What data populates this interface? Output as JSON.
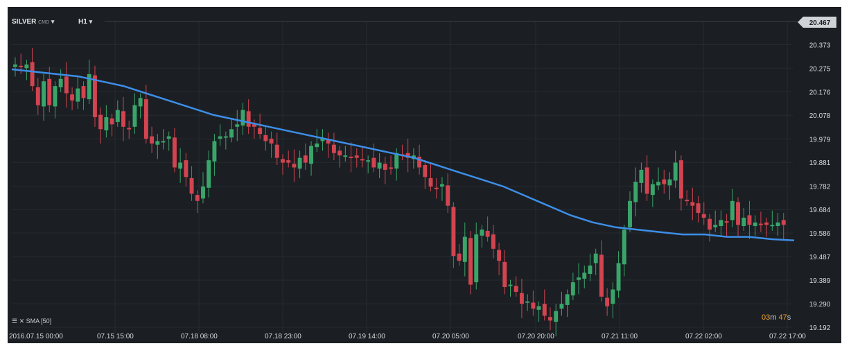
{
  "header": {
    "symbol": "SILVER",
    "sub": "CMD",
    "timeframe": "H1"
  },
  "indicator_label": "SMA [50]",
  "timer": {
    "minutes": "03",
    "m": "m",
    "seconds": "47",
    "s": "s"
  },
  "colors": {
    "bg": "#1b1f23",
    "up": "#3aa56a",
    "down": "#d24450",
    "sma": "#3d8ee8",
    "grid": "#262b31",
    "text": "#d9dcdf"
  },
  "chart_data": {
    "type": "candlestick",
    "title": "SILVER CMD H1",
    "y_ticks": [
      "20.467",
      "20.373",
      "20.275",
      "20.176",
      "20.078",
      "19.979",
      "19.881",
      "19.782",
      "19.684",
      "19.586",
      "19.487",
      "19.389",
      "19.290",
      "19.192"
    ],
    "x_ticks": [
      "2016.07.15 00:00",
      "07.15 15:00",
      "07.18 08:00",
      "07.18 23:00",
      "07.19 14:00",
      "07.20 05:00",
      "07.20 20:00",
      "07.21 11:00",
      "07.22 02:00",
      "07.22 17:00"
    ],
    "ylim": [
      19.192,
      20.467
    ],
    "last_price": "20.467",
    "grid": true,
    "key_points": [
      {
        "x": "2016.07.15 00:00",
        "close": 20.29
      },
      {
        "x": "07.15 15:00",
        "close": 20.08
      },
      {
        "x": "07.18 08:00",
        "close": 19.72
      },
      {
        "x": "07.18 23:00",
        "close": 20.07
      },
      {
        "x": "07.19 14:00",
        "close": 19.94
      },
      {
        "x": "07.20 05:00",
        "close": 19.92
      },
      {
        "x": "07.20 20:00",
        "close": 19.27
      },
      {
        "x": "07.21 11:00",
        "close": 19.66
      },
      {
        "x": "07.22 02:00",
        "close": 19.76
      },
      {
        "x": "07.22 17:00",
        "close": 19.62
      }
    ],
    "series": [
      {
        "name": "SILVER",
        "type": "candlestick",
        "closes": [
          20.29,
          20.28,
          20.29,
          20.2,
          20.12,
          20.22,
          20.12,
          20.2,
          20.23,
          20.17,
          20.14,
          20.19,
          20.15,
          20.25,
          20.07,
          20.02,
          20.07,
          20.04,
          20.1,
          20.03,
          20.02,
          20.12,
          20.15,
          19.98,
          19.96,
          19.97,
          19.97,
          19.99,
          19.86,
          19.88,
          19.82,
          19.75,
          19.72,
          19.78,
          19.89,
          19.97,
          19.99,
          19.99,
          20.02,
          20.04,
          20.1,
          20.03,
          20.03,
          20.0,
          19.97,
          19.96,
          19.9,
          19.88,
          19.88,
          19.86,
          19.9,
          19.88,
          19.95,
          19.96,
          19.98,
          19.96,
          19.92,
          19.91,
          19.91,
          19.9,
          19.9,
          19.89,
          19.89,
          19.86,
          19.88,
          19.85,
          19.86,
          19.92,
          19.91,
          19.9,
          19.91,
          19.86,
          19.82,
          19.78,
          19.77,
          19.79,
          19.7,
          19.49,
          19.47,
          19.57,
          19.37,
          19.58,
          19.6,
          19.57,
          19.52,
          19.47,
          19.36,
          19.37,
          19.34,
          19.29,
          19.3,
          19.27,
          19.28,
          19.24,
          19.22,
          19.26,
          19.29,
          19.33,
          19.38,
          19.4,
          19.42,
          19.45,
          19.5,
          19.32,
          19.28,
          19.35,
          19.46,
          19.6,
          19.72,
          19.8,
          19.85,
          19.75,
          19.79,
          19.8,
          19.79,
          19.81,
          19.88,
          19.73,
          19.72,
          19.7,
          19.67,
          19.65,
          19.6,
          19.62,
          19.64,
          19.63,
          19.72,
          19.62,
          19.65,
          19.62,
          19.63,
          19.62,
          19.62,
          19.62,
          19.63,
          19.62
        ]
      }
    ],
    "sma": {
      "name": "SMA [50]",
      "values": [
        20.27,
        20.26,
        20.25,
        20.24,
        20.22,
        20.2,
        20.17,
        20.14,
        20.11,
        20.08,
        20.06,
        20.04,
        20.02,
        20.0,
        19.98,
        19.96,
        19.94,
        19.92,
        19.9,
        19.87,
        19.84,
        19.81,
        19.78,
        19.74,
        19.7,
        19.66,
        19.63,
        19.61,
        19.6,
        19.59,
        19.58,
        19.58,
        19.57,
        19.57,
        19.56,
        19.555
      ]
    }
  }
}
